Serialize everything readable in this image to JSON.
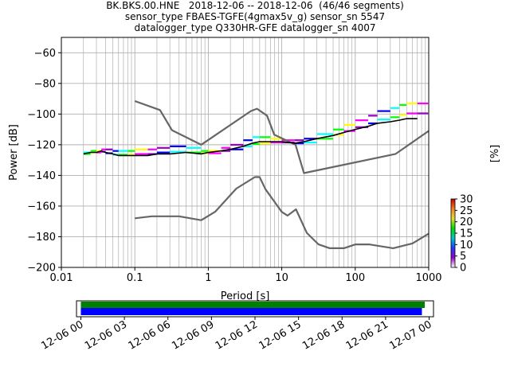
{
  "chart_data": {
    "type": "ppsd",
    "title_lines": [
      "BK.BKS.00.HNE   2018-12-06 -- 2018-12-06  (46/46 segments)",
      "sensor_type FBAES-TGFE(4gmax5v_g) sensor_sn 5547",
      "datalogger_type Q330HR-GFE datalogger_sn 4007"
    ],
    "xlabel": "Period [s]",
    "ylabel": "Power [dB]",
    "x_scale": "log",
    "xlim": [
      0.01,
      1000
    ],
    "ylim": [
      -200,
      -50
    ],
    "x_tick_labels": [
      {
        "value": 0.01,
        "label": "0.01"
      },
      {
        "value": 0.1,
        "label": "0.1"
      },
      {
        "value": 1,
        "label": "1"
      },
      {
        "value": 10,
        "label": "10"
      },
      {
        "value": 100,
        "label": "100"
      },
      {
        "value": 1000,
        "label": "1000"
      }
    ],
    "y_ticks": [
      -200,
      -180,
      -160,
      -140,
      -120,
      -100,
      -80,
      -60
    ],
    "grid": true,
    "colorbar": {
      "label": "[%]",
      "ticks": [
        0,
        5,
        10,
        15,
        20,
        25,
        30
      ],
      "range": [
        0,
        30
      ],
      "colors": [
        "#ffffff",
        "#9600c8",
        "#1e3cff",
        "#00c8c8",
        "#00dc00",
        "#e6dc32",
        "#f08228",
        "#c80000"
      ]
    },
    "new_high_noise_model": {
      "period": [
        0.1,
        0.22,
        0.32,
        0.8,
        3.8,
        4.6,
        6.3,
        7.9,
        15.4,
        20,
        354.8,
        1000
      ],
      "power": [
        -91.5,
        -97.4,
        -110.5,
        -120,
        -98,
        -96.5,
        -101,
        -113.5,
        -120,
        -138.5,
        -126,
        -111
      ]
    },
    "new_low_noise_model": {
      "period": [
        0.1,
        0.17,
        0.4,
        0.8,
        1.24,
        2.4,
        4.3,
        5,
        6,
        10,
        12,
        15.6,
        21.9,
        31.6,
        45,
        70,
        101,
        154,
        328,
        600,
        1000
      ],
      "power": [
        -168,
        -166.7,
        -166.7,
        -169.2,
        -163.7,
        -148.6,
        -141.1,
        -141.1,
        -149,
        -163.8,
        -166.2,
        -162.1,
        -177.5,
        -185,
        -187.5,
        -187.5,
        -185,
        -185,
        -187.5,
        -184.4,
        -178
      ]
    },
    "median": {
      "period": [
        0.02,
        0.025,
        0.03,
        0.035,
        0.04,
        0.05,
        0.06,
        0.08,
        0.1,
        0.15,
        0.2,
        0.3,
        0.5,
        0.8,
        1,
        1.5,
        2,
        3,
        4,
        5,
        7,
        10,
        15,
        20,
        30,
        50,
        70,
        100,
        150,
        200,
        300,
        400,
        500,
        700
      ],
      "power": [
        -126,
        -125,
        -125,
        -124,
        -125,
        -126,
        -127,
        -127,
        -127,
        -127,
        -126,
        -126,
        -125,
        -126,
        -125,
        -124,
        -123,
        -121,
        -119,
        -118,
        -118,
        -118,
        -119,
        -118,
        -116,
        -114,
        -112,
        -110,
        -108,
        -106,
        -105,
        -104,
        -103,
        -103
      ]
    },
    "pdf_band": {
      "period": [
        0.02,
        0.025,
        0.03,
        0.035,
        0.04,
        0.05,
        0.06,
        0.08,
        0.1,
        0.15,
        0.2,
        0.3,
        0.5,
        0.8,
        1,
        1.5,
        2,
        3,
        4,
        5,
        7,
        10,
        15,
        20,
        30,
        50,
        70,
        100,
        150,
        200,
        300,
        400,
        500,
        700
      ],
      "power_low": [
        -127,
        -126,
        -126,
        -126,
        -128,
        -129,
        -129,
        -129,
        -129,
        -129,
        -128,
        -128,
        -128,
        -127,
        -127,
        -126,
        -126,
        -125,
        -124,
        -123,
        -121,
        -120,
        -121,
        -121,
        -119,
        -117,
        -115,
        -113,
        -111,
        -109,
        -108,
        -107,
        -106,
        -106
      ],
      "power_high": [
        -125,
        -124,
        -124,
        -123,
        -123,
        -124,
        -124,
        -124,
        -123,
        -123,
        -122,
        -121,
        -122,
        -124,
        -124,
        -122,
        -120,
        -117,
        -115,
        -115,
        -116,
        -117,
        -117,
        -116,
        -113,
        -110,
        -107,
        -104,
        -101,
        -98,
        -96,
        -94,
        -93,
        -93
      ]
    },
    "time_coverage": {
      "tick_labels": [
        "12-06 00",
        "12-06 03",
        "12-06 06",
        "12-06 09",
        "12-06 12",
        "12-06 15",
        "12-06 18",
        "12-06 21",
        "12-07 00"
      ],
      "range_hours": [
        -0.3,
        24.3
      ],
      "data_availability": {
        "start_hour": 0,
        "end_hour": 23.7,
        "color": "#008000"
      },
      "processed_segments": {
        "start_hour": 0,
        "end_hour": 23.5,
        "color": "#0000ff"
      }
    }
  }
}
